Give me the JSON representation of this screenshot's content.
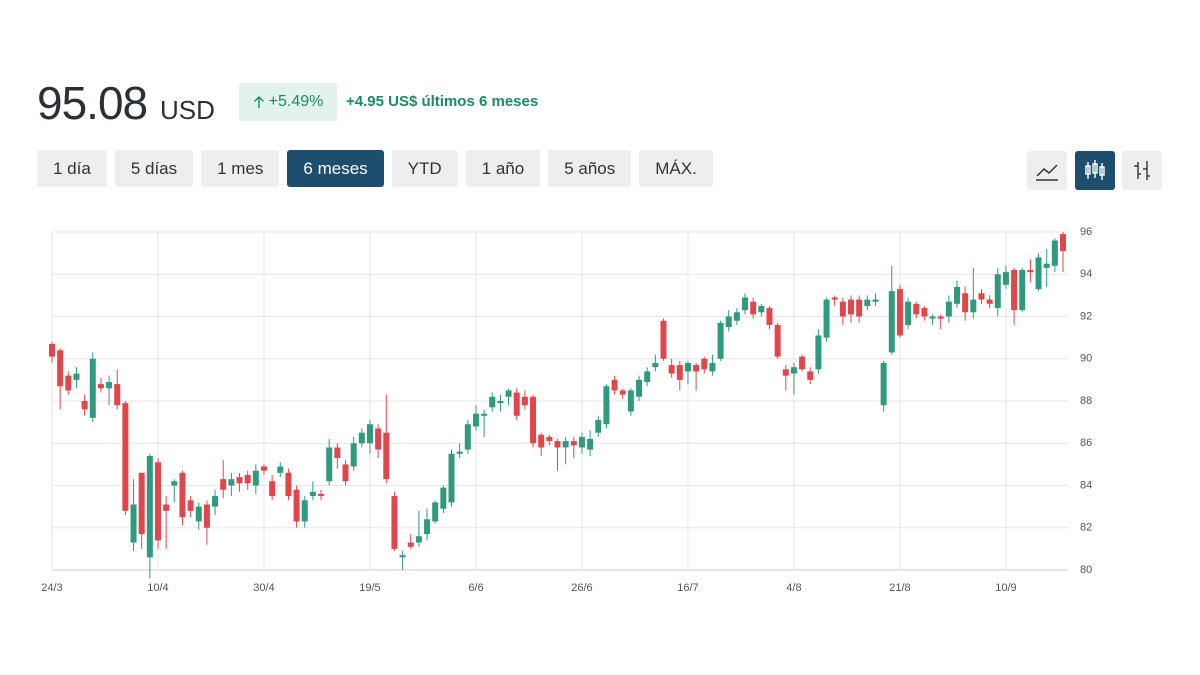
{
  "header": {
    "price": "95.08",
    "currency": "USD",
    "change_pct": "+5.49%",
    "change_abs": "+4.95 US$ últimos 6 meses"
  },
  "ranges": [
    "1 día",
    "5 días",
    "1 mes",
    "6 meses",
    "YTD",
    "1 año",
    "5 años",
    "MÁX."
  ],
  "selected_range_index": 3,
  "chart_data": {
    "type": "candlestick",
    "categories": [
      "24/3",
      null,
      null,
      null,
      null,
      null,
      null,
      null,
      null,
      null,
      null,
      null,
      null,
      "10/4",
      null,
      null,
      null,
      null,
      null,
      null,
      null,
      null,
      null,
      null,
      null,
      null,
      "30/4",
      null,
      null,
      null,
      null,
      null,
      null,
      null,
      null,
      null,
      null,
      null,
      null,
      "19/5",
      null,
      null,
      null,
      null,
      null,
      null,
      null,
      null,
      null,
      null,
      null,
      null,
      "6/6",
      null,
      null,
      null,
      null,
      null,
      null,
      null,
      null,
      null,
      null,
      null,
      null,
      "26/6",
      null,
      null,
      null,
      null,
      null,
      null,
      null,
      null,
      null,
      null,
      null,
      null,
      "16/7",
      null,
      null,
      null,
      null,
      null,
      null,
      null,
      null,
      null,
      null,
      null,
      null,
      "4/8",
      null,
      null,
      null,
      null,
      null,
      null,
      null,
      null,
      null,
      null,
      null,
      null,
      "21/8",
      null,
      null,
      null,
      null,
      null,
      null,
      null,
      null,
      null,
      null,
      null,
      null,
      "10/9",
      null,
      null,
      null,
      null,
      null,
      null,
      null
    ],
    "open": [
      90.7,
      90.4,
      89.2,
      89.0,
      88.0,
      87.2,
      88.8,
      88.6,
      88.8,
      87.9,
      81.3,
      84.6,
      80.6,
      85.1,
      83.1,
      84.0,
      84.6,
      83.3,
      82.3,
      83.1,
      83.0,
      84.3,
      84.0,
      84.4,
      84.5,
      84.0,
      84.9,
      84.2,
      84.6,
      84.6,
      83.8,
      82.3,
      83.5,
      83.6,
      84.2,
      85.8,
      85.0,
      84.9,
      86.0,
      86.0,
      86.7,
      86.5,
      83.5,
      80.6,
      81.3,
      81.3,
      81.7,
      82.3,
      82.9,
      83.2,
      85.5,
      85.7,
      86.8,
      87.3,
      87.7,
      87.9,
      88.2,
      88.4,
      88.2,
      88.2,
      86.4,
      86.3,
      86.1,
      85.8,
      86.1,
      85.8,
      85.7,
      86.5,
      86.9,
      89.0,
      88.5,
      87.5,
      88.2,
      88.9,
      89.6,
      91.8,
      89.7,
      89.7,
      89.4,
      89.7,
      90.0,
      89.4,
      90.0,
      91.5,
      91.8,
      92.3,
      92.7,
      92.2,
      92.4,
      91.6,
      89.5,
      89.3,
      90.1,
      89.4,
      89.5,
      91.0,
      92.9,
      92.7,
      92.8,
      92.8,
      92.5,
      92.7,
      87.8,
      90.3,
      93.3,
      91.6,
      92.6,
      92.4,
      91.9,
      92.0,
      92.0,
      92.6,
      93.1,
      92.2,
      93.1,
      92.8,
      92.4,
      93.5,
      94.2,
      92.3,
      94.2,
      93.3,
      94.3,
      94.4,
      95.9
    ],
    "high": [
      90.8,
      90.5,
      89.4,
      89.6,
      88.3,
      90.3,
      89.1,
      89.2,
      89.5,
      88.0,
      84.3,
      84.6,
      85.5,
      85.3,
      83.5,
      84.3,
      84.7,
      83.5,
      83.2,
      83.3,
      83.8,
      85.2,
      84.6,
      84.6,
      84.7,
      85.0,
      85.0,
      84.5,
      85.1,
      84.8,
      84.0,
      83.5,
      84.2,
      83.8,
      86.2,
      86.0,
      85.2,
      86.3,
      86.7,
      87.1,
      86.9,
      88.3,
      83.7,
      80.9,
      81.7,
      82.8,
      82.9,
      83.3,
      84.0,
      85.7,
      86.0,
      87.1,
      87.8,
      87.6,
      88.4,
      88.3,
      88.6,
      88.6,
      88.5,
      88.3,
      86.5,
      86.4,
      86.2,
      86.3,
      86.3,
      86.5,
      86.6,
      87.3,
      88.8,
      89.2,
      88.6,
      88.6,
      89.2,
      89.6,
      90.2,
      91.9,
      90.0,
      89.9,
      89.9,
      89.8,
      90.1,
      90.2,
      91.8,
      92.3,
      92.4,
      93.1,
      92.9,
      92.6,
      92.5,
      91.7,
      89.7,
      89.8,
      90.2,
      89.6,
      91.4,
      92.9,
      93.0,
      92.9,
      93.0,
      93.0,
      93.0,
      93.1,
      89.9,
      94.4,
      93.5,
      92.9,
      92.7,
      92.5,
      92.1,
      92.1,
      93.0,
      93.7,
      93.4,
      94.3,
      93.3,
      93.0,
      94.3,
      94.4,
      94.3,
      94.3,
      94.7,
      95.0,
      95.2,
      95.7,
      96.0
    ],
    "low": [
      89.8,
      87.6,
      88.3,
      88.6,
      87.3,
      87.0,
      88.4,
      87.8,
      87.6,
      82.6,
      80.9,
      81.0,
      79.6,
      81.0,
      81.0,
      83.2,
      82.1,
      82.5,
      81.9,
      81.2,
      82.6,
      83.4,
      83.5,
      83.7,
      83.8,
      83.6,
      84.5,
      83.3,
      84.4,
      83.3,
      82.0,
      82.0,
      83.3,
      83.3,
      84.0,
      84.8,
      84.0,
      84.7,
      85.8,
      85.5,
      85.3,
      84.1,
      80.9,
      80.0,
      81.0,
      81.1,
      81.4,
      82.2,
      82.7,
      83.0,
      85.3,
      85.5,
      86.6,
      86.3,
      87.5,
      87.5,
      87.8,
      87.1,
      87.6,
      85.8,
      85.4,
      85.9,
      84.7,
      85.0,
      85.3,
      85.5,
      85.4,
      86.3,
      86.7,
      88.3,
      88.1,
      87.3,
      88.0,
      88.7,
      89.4,
      89.9,
      89.1,
      88.5,
      88.8,
      88.5,
      89.3,
      89.2,
      89.9,
      91.3,
      91.6,
      92.1,
      91.9,
      92.0,
      91.4,
      90.0,
      88.5,
      88.3,
      89.4,
      88.8,
      89.3,
      90.8,
      92.5,
      91.6,
      91.7,
      91.7,
      92.3,
      92.5,
      87.5,
      90.2,
      91.0,
      91.4,
      91.9,
      91.8,
      91.6,
      91.4,
      91.7,
      92.4,
      91.8,
      91.9,
      92.6,
      92.4,
      92.0,
      93.3,
      91.6,
      92.2,
      93.6,
      93.2,
      93.4,
      94.1,
      94.1
    ],
    "close": [
      90.1,
      88.7,
      88.5,
      89.3,
      87.6,
      90.0,
      88.6,
      88.9,
      87.8,
      82.8,
      83.1,
      81.7,
      85.4,
      81.4,
      82.8,
      84.2,
      82.5,
      82.8,
      83.0,
      82.0,
      83.5,
      83.8,
      84.3,
      84.1,
      84.1,
      84.7,
      84.7,
      83.5,
      84.9,
      83.5,
      82.3,
      83.3,
      83.7,
      83.5,
      85.8,
      85.3,
      84.2,
      86.0,
      86.5,
      86.9,
      85.7,
      84.3,
      81.0,
      80.7,
      81.1,
      81.6,
      82.4,
      83.2,
      83.9,
      85.5,
      85.6,
      86.9,
      87.4,
      87.4,
      88.2,
      88.0,
      88.5,
      87.3,
      87.8,
      86.0,
      85.8,
      86.1,
      85.8,
      86.1,
      85.9,
      86.3,
      86.2,
      87.1,
      88.7,
      88.5,
      88.3,
      88.5,
      89.0,
      89.4,
      89.8,
      90.0,
      89.3,
      89.0,
      89.8,
      89.4,
      89.5,
      89.8,
      91.7,
      92.0,
      92.2,
      92.9,
      92.1,
      92.5,
      91.6,
      90.1,
      89.2,
      89.6,
      89.5,
      89.0,
      91.1,
      92.8,
      92.8,
      92.0,
      92.1,
      92.0,
      92.8,
      92.8,
      89.8,
      93.2,
      91.1,
      92.7,
      92.1,
      92.0,
      92.0,
      91.9,
      92.7,
      93.4,
      92.2,
      92.8,
      92.8,
      92.6,
      94.0,
      94.1,
      92.3,
      94.2,
      94.1,
      94.8,
      94.5,
      95.6,
      95.1
    ],
    "up_color": "#2f9a7e",
    "down_color": "#e0474c",
    "ylim": [
      80,
      96
    ],
    "yticks": [
      80,
      82,
      84,
      86,
      88,
      90,
      92,
      94,
      96
    ],
    "grid": true
  }
}
